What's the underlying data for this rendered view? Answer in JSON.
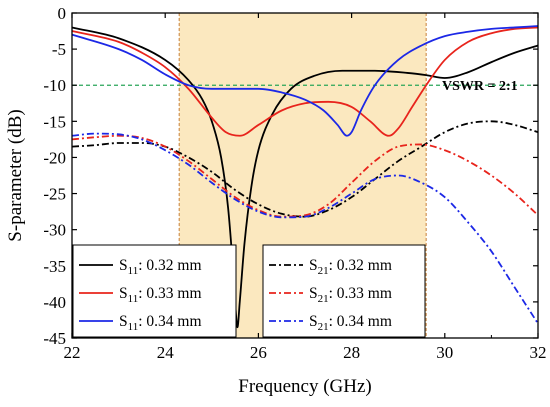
{
  "chart_data": {
    "type": "line",
    "xlabel": "Frequency (GHz)",
    "ylabel": "S-parameter (dB)",
    "xlim": [
      22,
      32
    ],
    "ylim": [
      -45,
      0
    ],
    "xticks": [
      22,
      24,
      26,
      28,
      30,
      32
    ],
    "yticks": [
      0,
      -5,
      -10,
      -15,
      -20,
      -25,
      -30,
      -35,
      -40,
      -45
    ],
    "grid": false,
    "legend_placement": "bottom, two boxes",
    "band": {
      "x_start": 24.3,
      "x_end": 29.6,
      "color": "#fbe8bf",
      "edge_color": "#c8803a"
    },
    "reference_line": {
      "y": -10,
      "label": "VSWR = 2:1",
      "color": "#2aa55a"
    },
    "series": [
      {
        "name": "S11: 0.32 mm",
        "symbol": "S",
        "subscript": "11",
        "value": ": 0.32 mm",
        "color": "#000000",
        "style": "solid",
        "x": [
          22,
          23,
          24,
          24.5,
          24.8,
          25.0,
          25.2,
          25.35,
          25.45,
          25.5,
          25.55,
          25.6,
          25.7,
          25.85,
          26.0,
          26.3,
          26.7,
          27.2,
          27.8,
          28.5,
          29.2,
          29.6,
          30.0,
          30.5,
          31.0,
          31.5,
          32
        ],
        "y": [
          -2,
          -3.5,
          -6.5,
          -9.3,
          -12,
          -15,
          -20,
          -27,
          -35,
          -40,
          -43.5,
          -40,
          -32,
          -24,
          -19,
          -14,
          -10.5,
          -8.7,
          -8,
          -8,
          -8.3,
          -8.6,
          -9,
          -8.2,
          -6.8,
          -5.5,
          -4.5
        ]
      },
      {
        "name": "S11: 0.33 mm",
        "symbol": "S",
        "subscript": "11",
        "value": ": 0.33 mm",
        "color": "#e8241c",
        "style": "solid",
        "x": [
          22,
          23,
          23.5,
          24,
          24.5,
          25.0,
          25.3,
          25.6,
          26.0,
          26.5,
          27.0,
          27.5,
          28.0,
          28.4,
          28.8,
          29.0,
          29.3,
          29.6,
          30.0,
          30.5,
          31.0,
          31.5,
          32
        ],
        "y": [
          -2.5,
          -4,
          -5.5,
          -7.5,
          -10.5,
          -14.5,
          -16.5,
          -17,
          -15.5,
          -13.5,
          -12.5,
          -12.3,
          -13,
          -15,
          -17,
          -16,
          -13,
          -10,
          -6.5,
          -4,
          -2.8,
          -2.2,
          -2
        ]
      },
      {
        "name": "S11: 0.34 mm",
        "symbol": "S",
        "subscript": "11",
        "value": ": 0.34 mm",
        "color": "#1c28e6",
        "style": "solid",
        "x": [
          22,
          23,
          23.5,
          24,
          24.5,
          25.0,
          25.5,
          26.0,
          26.5,
          27.0,
          27.4,
          27.7,
          27.9,
          28.0,
          28.2,
          28.5,
          29.0,
          29.5,
          30.0,
          30.5,
          31.0,
          31.5,
          32
        ],
        "y": [
          -3,
          -5,
          -6.5,
          -8.5,
          -10,
          -10.5,
          -10.5,
          -10.5,
          -11,
          -12,
          -13.5,
          -15.5,
          -17,
          -16.5,
          -13.5,
          -10,
          -6.5,
          -4.5,
          -3.2,
          -2.6,
          -2.2,
          -2,
          -1.8
        ]
      },
      {
        "name": "S21: 0.32 mm",
        "symbol": "S",
        "subscript": "21",
        "value": ": 0.32 mm",
        "color": "#000000",
        "style": "dashdot",
        "x": [
          22,
          22.5,
          23,
          23.5,
          24,
          24.5,
          25,
          25.5,
          26,
          26.5,
          27,
          27.5,
          28,
          28.5,
          29,
          29.5,
          30,
          30.5,
          31,
          31.5,
          32
        ],
        "y": [
          -18.5,
          -18.3,
          -18,
          -18,
          -18.5,
          -20,
          -22,
          -24.5,
          -26.5,
          -27.8,
          -28.2,
          -27.3,
          -25.5,
          -23,
          -20.5,
          -18.5,
          -16.5,
          -15.3,
          -15,
          -15.5,
          -16.5
        ]
      },
      {
        "name": "S21: 0.33 mm",
        "symbol": "S",
        "subscript": "21",
        "value": ": 0.33 mm",
        "color": "#e8241c",
        "style": "dashdot",
        "x": [
          22,
          22.5,
          23,
          23.5,
          24,
          24.5,
          25,
          25.5,
          26,
          26.5,
          27,
          27.5,
          28,
          28.5,
          29,
          29.5,
          30,
          30.5,
          31,
          31.5,
          32
        ],
        "y": [
          -17.5,
          -17.2,
          -17,
          -17.3,
          -18.5,
          -20.5,
          -23,
          -25.5,
          -27.3,
          -28.2,
          -28,
          -26.5,
          -23.5,
          -20.5,
          -18.5,
          -18.2,
          -19,
          -20.5,
          -22.5,
          -25,
          -28
        ]
      },
      {
        "name": "S21: 0.34 mm",
        "symbol": "S",
        "subscript": "21",
        "value": ": 0.34 mm",
        "color": "#1c28e6",
        "style": "dashdot",
        "x": [
          22,
          22.5,
          23,
          23.5,
          24,
          24.5,
          25,
          25.5,
          26,
          26.5,
          27,
          27.5,
          28,
          28.5,
          29,
          29.5,
          30,
          30.5,
          31,
          31.5,
          32
        ],
        "y": [
          -17,
          -16.7,
          -16.8,
          -17.5,
          -19,
          -21,
          -23.5,
          -25.8,
          -27.5,
          -28.3,
          -28.2,
          -27,
          -25,
          -23,
          -22.5,
          -23.5,
          -25.5,
          -29,
          -33,
          -38,
          -43
        ]
      }
    ]
  }
}
